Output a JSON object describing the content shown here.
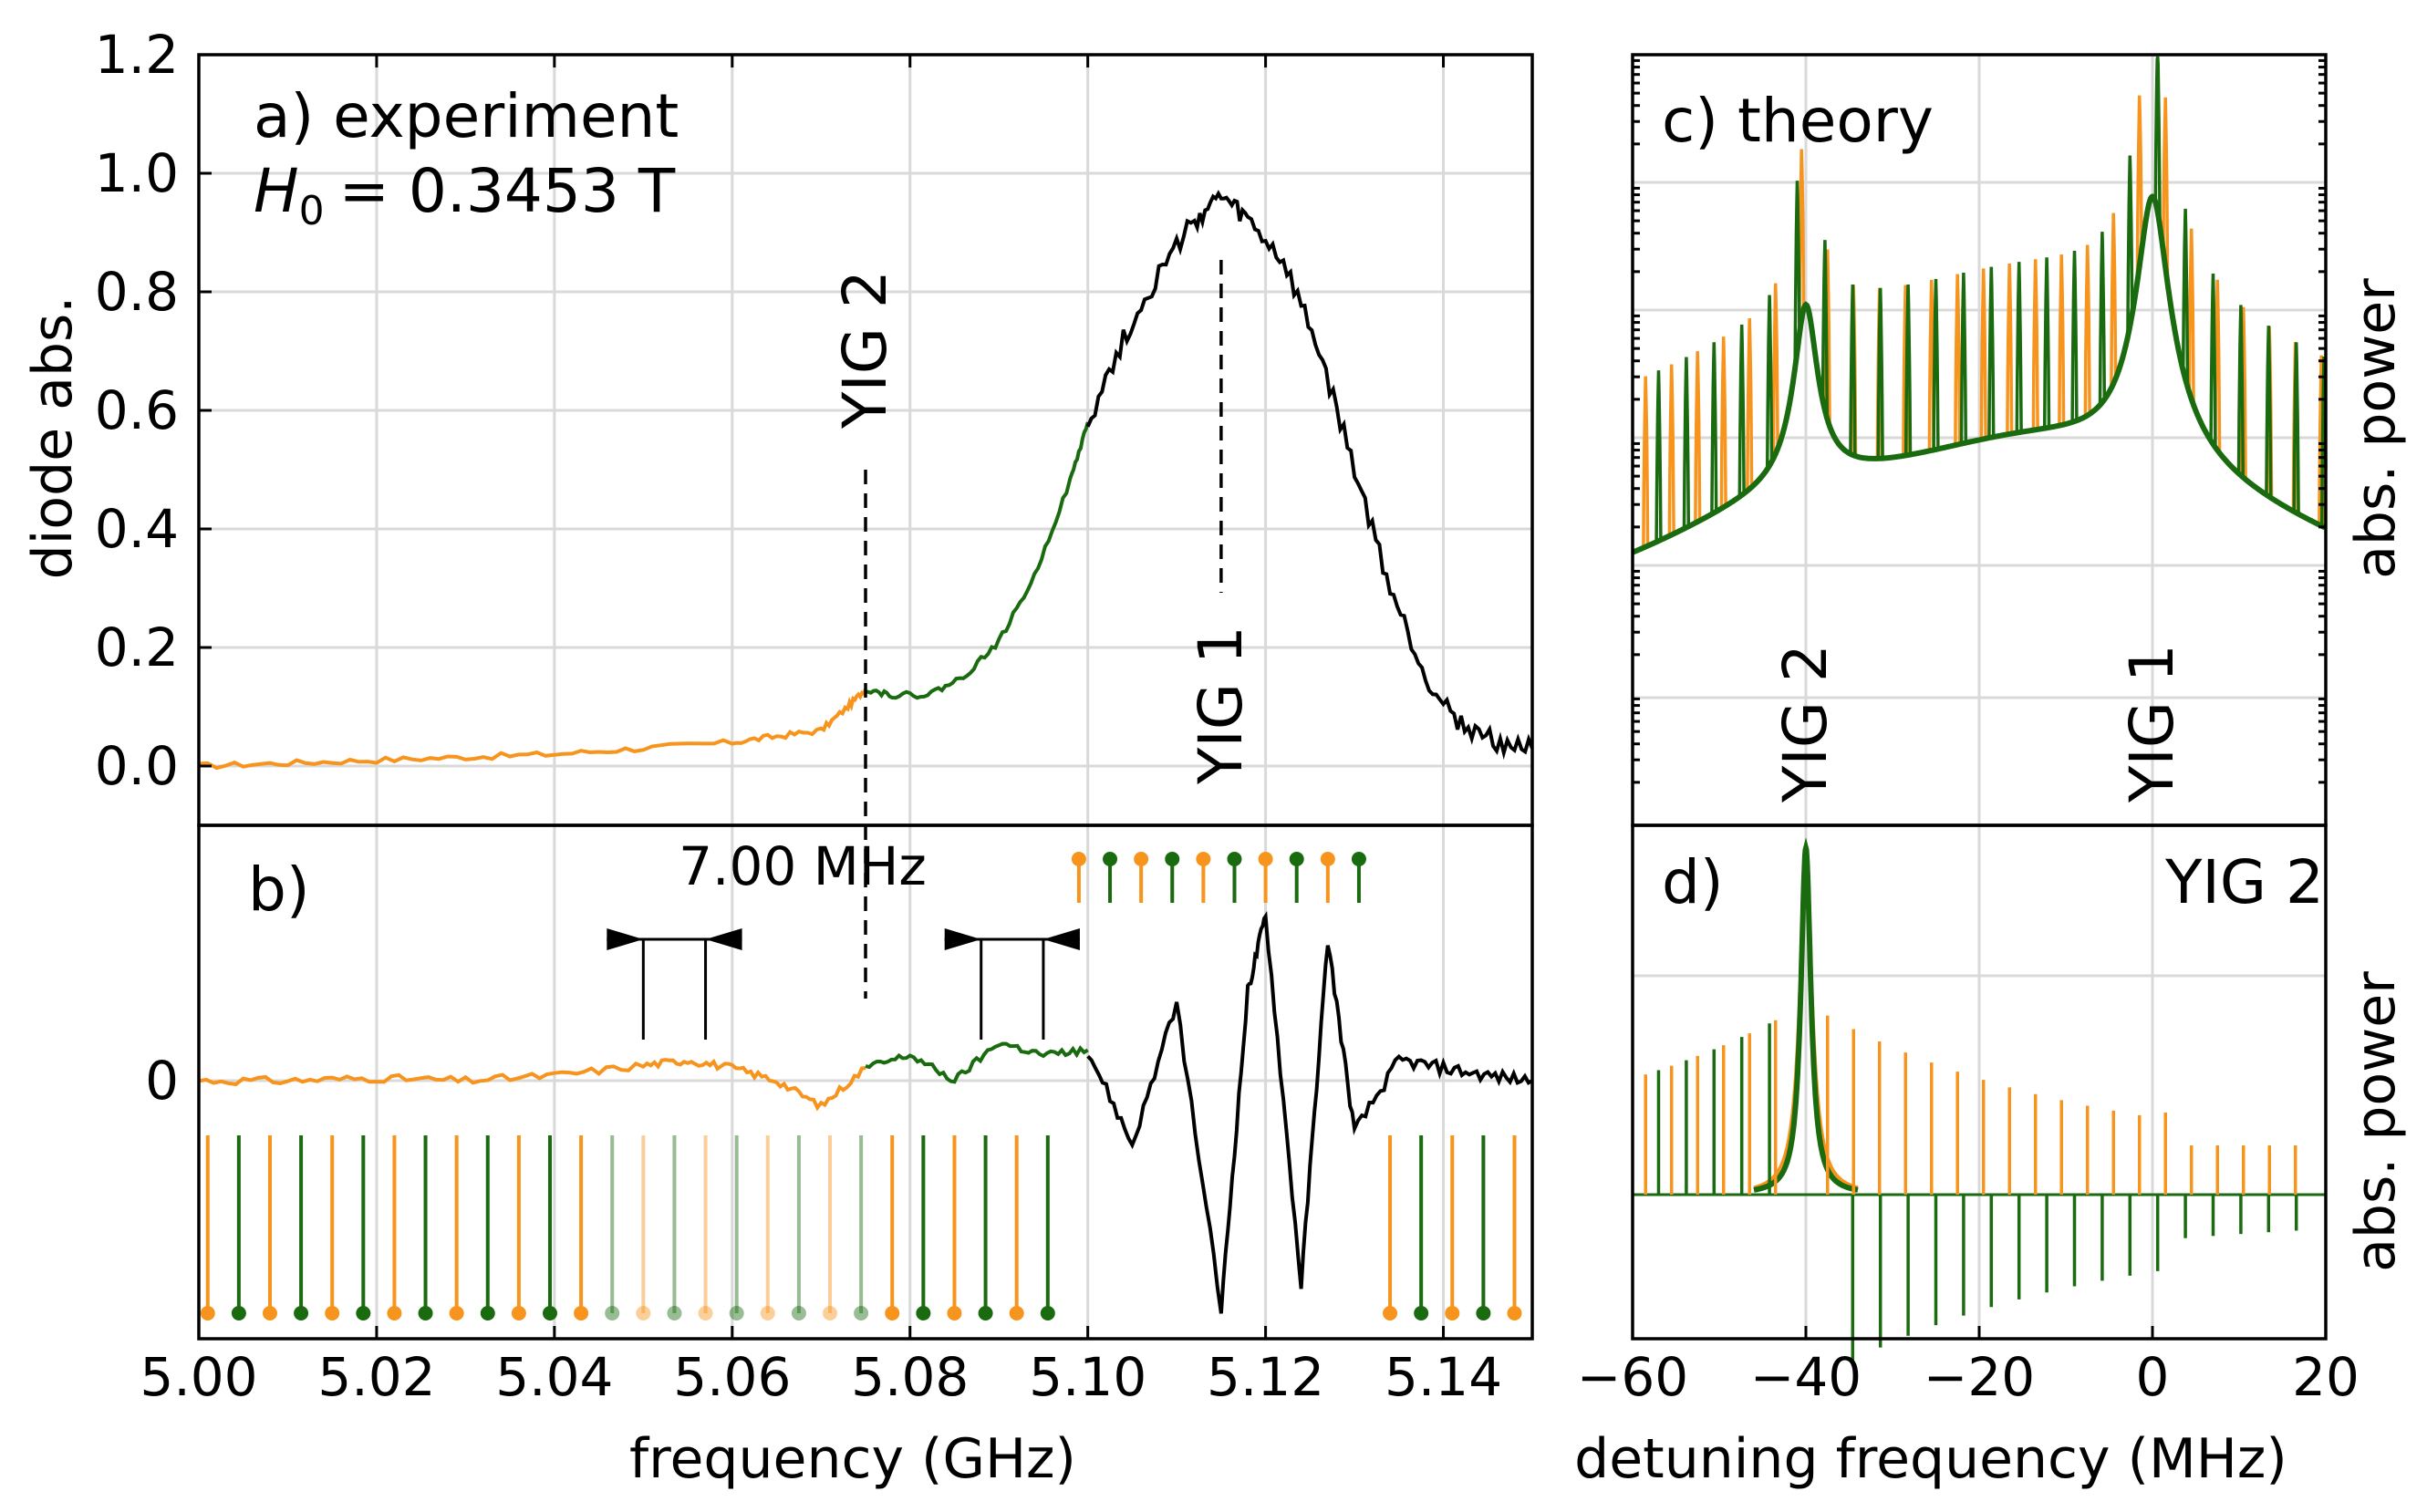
{
  "chart_data": [
    {
      "panel": "a",
      "type": "line",
      "title": "a) experiment",
      "field_prefix": "H",
      "field_sub": "0",
      "field_value": "= 0.3453 T",
      "ylabel": "diode abs.",
      "xlabel": "",
      "xlim": [
        5.0,
        5.15
      ],
      "ylim": [
        -0.1,
        1.2
      ],
      "yticks": [
        "0.0",
        "0.2",
        "0.4",
        "0.6",
        "0.8",
        "1.0",
        "1.2"
      ],
      "yticks_values": [
        0.0,
        0.2,
        0.4,
        0.6,
        0.8,
        1.0,
        1.2
      ],
      "annotations": [
        {
          "text": "YIG 2",
          "x": 5.075,
          "color": "#990000"
        },
        {
          "text": "YIG 1",
          "x": 5.115,
          "color": "#1a1aff"
        }
      ],
      "series": [
        {
          "name": "orange segment",
          "color": "#f7941d",
          "x": [
            5.0,
            5.01,
            5.02,
            5.03,
            5.04,
            5.05,
            5.06,
            5.065,
            5.07,
            5.073,
            5.075
          ],
          "y": [
            0.0,
            0.005,
            0.01,
            0.015,
            0.02,
            0.03,
            0.04,
            0.05,
            0.06,
            0.1,
            0.13
          ]
        },
        {
          "name": "green segment",
          "color": "#1a6b0f",
          "x": [
            5.075,
            5.078,
            5.082,
            5.086,
            5.09,
            5.094,
            5.098,
            5.1
          ],
          "y": [
            0.13,
            0.12,
            0.12,
            0.15,
            0.21,
            0.32,
            0.48,
            0.58
          ]
        },
        {
          "name": "black segment",
          "color": "#000000",
          "x": [
            5.1,
            5.104,
            5.108,
            5.112,
            5.115,
            5.118,
            5.122,
            5.126,
            5.13,
            5.134,
            5.138,
            5.142,
            5.146,
            5.15
          ],
          "y": [
            0.58,
            0.72,
            0.83,
            0.92,
            0.96,
            0.92,
            0.85,
            0.7,
            0.5,
            0.3,
            0.15,
            0.07,
            0.04,
            0.03
          ]
        }
      ]
    },
    {
      "panel": "b",
      "type": "line",
      "title": "b)",
      "xlabel": "frequency (GHz)",
      "xlim": [
        5.0,
        5.15
      ],
      "xticks": [
        "5.00",
        "5.02",
        "5.04",
        "5.06",
        "5.08",
        "5.10",
        "5.12",
        "5.14"
      ],
      "xticks_values": [
        5.0,
        5.02,
        5.04,
        5.06,
        5.08,
        5.1,
        5.12,
        5.14
      ],
      "ytick": "0",
      "spacing_label": "7.00 MHz",
      "spacing_markers_GHz": [
        [
          5.05,
          5.057
        ],
        [
          5.088,
          5.095
        ]
      ],
      "comb_orange_GHz": [
        5.001,
        5.008,
        5.015,
        5.022,
        5.029,
        5.036,
        5.043,
        5.05,
        5.057,
        5.064,
        5.071,
        5.078,
        5.085,
        5.092,
        5.099,
        5.106,
        5.113,
        5.12,
        5.127,
        5.134,
        5.141,
        5.148
      ],
      "comb_green_GHz": [
        5.0045,
        5.0115,
        5.0185,
        5.0255,
        5.0325,
        5.0395,
        5.0465,
        5.0535,
        5.0605,
        5.0675,
        5.0745,
        5.0815,
        5.0885,
        5.0955,
        5.1025,
        5.1095,
        5.1165,
        5.1235,
        5.1305,
        5.1375,
        5.1445
      ],
      "series": [
        {
          "name": "orange segment",
          "color": "#f7941d",
          "x": [
            5.0,
            5.01,
            5.02,
            5.03,
            5.04,
            5.05,
            5.055,
            5.06,
            5.065,
            5.07,
            5.075
          ],
          "y": [
            0.0,
            0.0,
            0.01,
            0.0,
            0.02,
            0.06,
            0.08,
            0.05,
            0.0,
            -0.1,
            0.05
          ]
        },
        {
          "name": "green segment",
          "color": "#1a6b0f",
          "x": [
            5.075,
            5.08,
            5.085,
            5.09,
            5.095,
            5.1
          ],
          "y": [
            0.05,
            0.1,
            0.0,
            0.15,
            0.1,
            0.12
          ]
        },
        {
          "name": "black segment",
          "color": "#000000",
          "x": [
            5.1,
            5.105,
            5.11,
            5.115,
            5.118,
            5.12,
            5.124,
            5.127,
            5.13,
            5.135,
            5.14,
            5.145,
            5.15
          ],
          "y": [
            0.12,
            -0.25,
            0.3,
            -0.9,
            0.35,
            0.65,
            -0.8,
            0.55,
            -0.2,
            0.08,
            0.05,
            0.02,
            0.0
          ]
        }
      ]
    },
    {
      "panel": "c",
      "type": "line",
      "title": "c) theory",
      "ylabel": "abs. power",
      "xlim": [
        -60,
        20
      ],
      "yscale": "log",
      "annotations": [
        {
          "text": "YIG 2",
          "x": -40,
          "color": "#990000"
        },
        {
          "text": "YIG 1",
          "x": 0,
          "color": "#1a1aff"
        }
      ],
      "series": [
        {
          "name": "orange comb",
          "color": "#f7941d"
        },
        {
          "name": "green comb",
          "color": "#1a6b0f"
        }
      ]
    },
    {
      "panel": "d",
      "type": "line",
      "title": "d)",
      "label_right": "YIG 2",
      "ylabel": "abs. power",
      "xlabel": "detuning frequency (MHz)",
      "xlim": [
        -60,
        20
      ],
      "xticks": [
        "−60",
        "−40",
        "−20",
        "0",
        "20"
      ],
      "xticks_values": [
        -60,
        -40,
        -20,
        0,
        20
      ],
      "series": [
        {
          "name": "orange comb",
          "color": "#f7941d"
        },
        {
          "name": "green comb",
          "color": "#1a6b0f"
        }
      ]
    }
  ]
}
